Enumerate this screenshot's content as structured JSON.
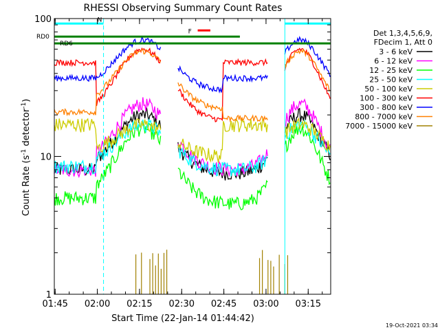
{
  "chart_data": {
    "type": "line",
    "title": "RHESSI Observing Summary Count Rates",
    "xlabel": "Start Time (22-Jan-14 01:44:42)",
    "ylabel": "Count Rate (s⁻¹ detector⁻¹)",
    "ylabel_parts": {
      "main": "Count Rate (s",
      "sup1": "-1",
      "mid": " detector",
      "sup2": "-1",
      "end": ")"
    },
    "y_scale": "log",
    "ylim": [
      1,
      100
    ],
    "xlim": [
      "01:44:42",
      "03:23:00"
    ],
    "x_tick_labels": [
      "01:45",
      "02:00",
      "02:15",
      "02:30",
      "02:45",
      "03:00",
      "03:15"
    ],
    "x_tick_minutes": [
      0.3,
      15.3,
      30.3,
      45.3,
      60.3,
      75.3,
      90.3
    ],
    "y_tick_labels": [
      "1",
      "10",
      "100"
    ],
    "y_tick_values": [
      1,
      10,
      100
    ],
    "grid": false,
    "legend_position": "right",
    "legend_header": [
      "Det 1,3,4,5,6,9,",
      "FDecim 1, Att 0"
    ],
    "series": [
      {
        "name": "3 - 6 keV",
        "color": "#000000"
      },
      {
        "name": "6 - 12 keV",
        "color": "#ff00ff"
      },
      {
        "name": "12 - 25 keV",
        "color": "#00ff00"
      },
      {
        "name": "25 - 50 keV",
        "color": "#00ffff"
      },
      {
        "name": "50 - 100 keV",
        "color": "#cccc00"
      },
      {
        "name": "100 - 300 keV",
        "color": "#ff0000"
      },
      {
        "name": "300 - 800 keV",
        "color": "#0000ff"
      },
      {
        "name": "800 - 7000 keV",
        "color": "#ff8000"
      },
      {
        "name": "7000 - 15000 keV",
        "color": "#a08000"
      }
    ],
    "segments": [
      [
        0,
        38
      ],
      [
        44,
        76
      ],
      [
        82,
        98.3
      ]
    ],
    "series_levels": [
      {
        "flat": 8.0,
        "peak": 20,
        "lo": 7.5
      },
      {
        "flat": 8.0,
        "peak": 24,
        "lo": 8.0
      },
      {
        "flat": 5.0,
        "peak": 16,
        "lo": 4.5
      },
      {
        "flat": 8.5,
        "peak": 17,
        "lo": 8.0
      },
      {
        "flat": 17,
        "peak": 17,
        "lo": 10
      },
      {
        "flat": 48,
        "peak": 60,
        "lo": 18
      },
      {
        "flat": 37,
        "peak": 70,
        "lo": 30
      },
      {
        "flat": 21,
        "peak": 58,
        "lo": 22
      },
      {
        "flat": 1.0,
        "peak": 1.0,
        "lo": 1.0
      }
    ],
    "bursts_7000_15000": {
      "minutes": [
        29,
        31,
        34,
        35,
        36,
        37,
        38,
        39,
        40,
        73,
        74,
        76,
        77,
        78,
        80,
        82,
        83
      ],
      "value": 1.9
    },
    "annotations": [
      {
        "label": "N",
        "color": "#00ffff",
        "x_start": 0,
        "x_end": 17.5,
        "level": 92
      },
      {
        "label": "",
        "color": "#00ffff",
        "x_start": 82,
        "x_end": 98.3,
        "level": 92
      },
      {
        "label": "F",
        "color": "#ff0000",
        "x_start": 51,
        "x_end": 55.5,
        "level": 82
      },
      {
        "label": "RD0",
        "color": "#008000",
        "x_start": 0,
        "x_end": 66,
        "level": 74
      },
      {
        "label": "RD6",
        "color": "#008000",
        "x_start": 0,
        "x_end": 98.3,
        "level": 66
      }
    ],
    "dashed_markers_minutes": [
      17.5,
      98.3
    ],
    "solid_markers_minutes": [
      82.0
    ]
  },
  "footer": {
    "date": "19-Oct-2021 03:34"
  }
}
